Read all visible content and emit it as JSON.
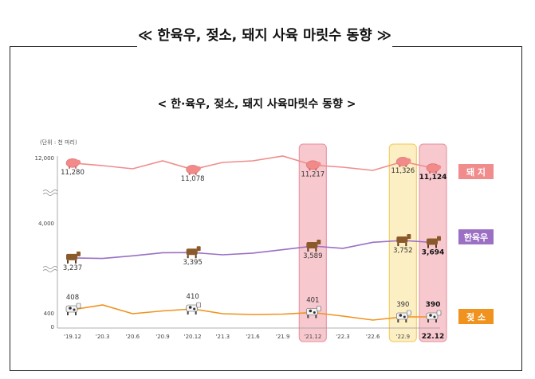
{
  "page_title": "≪ 한육우, 젖소, 돼지 사육 마릿수 동향 ≫",
  "chart_data": {
    "type": "line",
    "title": "< 한·육우, 젖소, 돼지 사육마릿수 동향 >",
    "unit": "(단위 : 천 마리)",
    "categories": [
      "'19.12",
      "'20.3",
      "'20.6",
      "'20.9",
      "'20.12",
      "'21.3",
      "'21.6",
      "'21.9",
      "'21.12",
      "'22.3",
      "'22.6",
      "'22.9",
      "22.12"
    ],
    "y_ticks": [
      "12,000",
      "4,000",
      "400",
      "0"
    ],
    "axis_breaks": true,
    "series": [
      {
        "name": "돼 지",
        "color": "#f08c8c",
        "values": [
          11280,
          11200,
          11100,
          11350,
          11078,
          11300,
          11350,
          11500,
          11217,
          11150,
          11050,
          11326,
          11124
        ],
        "labels": [
          {
            "index": 0,
            "text": "11,280",
            "bold": false
          },
          {
            "index": 4,
            "text": "11,078",
            "bold": false
          },
          {
            "index": 8,
            "text": "11,217",
            "bold": false
          },
          {
            "index": 11,
            "text": "11,326",
            "bold": false
          },
          {
            "index": 12,
            "text": "11,124",
            "bold": true
          }
        ]
      },
      {
        "name": "한육우",
        "color": "#9b6fc4",
        "values": [
          3237,
          3220,
          3300,
          3390,
          3395,
          3330,
          3380,
          3480,
          3589,
          3520,
          3700,
          3752,
          3694
        ],
        "labels": [
          {
            "index": 0,
            "text": "3,237",
            "bold": false
          },
          {
            "index": 4,
            "text": "3,395",
            "bold": false
          },
          {
            "index": 8,
            "text": "3,589",
            "bold": false
          },
          {
            "index": 11,
            "text": "3,752",
            "bold": false
          },
          {
            "index": 12,
            "text": "3,694",
            "bold": true
          }
        ]
      },
      {
        "name": "젖 소",
        "color": "#f0921e",
        "values": [
          408,
          420,
          398,
          405,
          410,
          398,
          396,
          397,
          401,
          392,
          382,
          390,
          390
        ],
        "labels": [
          {
            "index": 0,
            "text": "408",
            "bold": false
          },
          {
            "index": 4,
            "text": "410",
            "bold": false
          },
          {
            "index": 8,
            "text": "401",
            "bold": false
          },
          {
            "index": 11,
            "text": "390",
            "bold": false
          },
          {
            "index": 12,
            "text": "390",
            "bold": true
          }
        ]
      }
    ],
    "highlights": [
      {
        "index": 8,
        "color": "#f7c9cf"
      },
      {
        "index": 11,
        "color": "#fcefc4"
      },
      {
        "index": 12,
        "color": "#f7c9cf"
      }
    ]
  }
}
